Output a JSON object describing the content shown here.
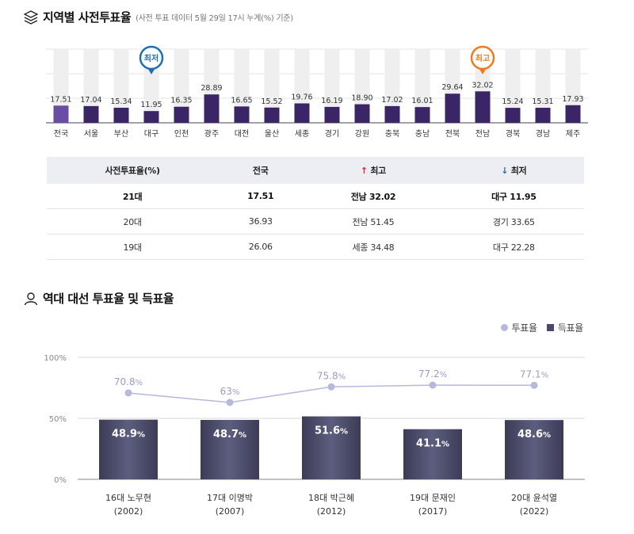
{
  "section1": {
    "title": "지역별 사전투표율",
    "subtitle": "(사전 투표 데이터 5월 29일 17시 누계(%) 기준)"
  },
  "colors": {
    "national_bar": "#6a4ba5",
    "bar": "#3a2666",
    "bar_bg": "#efefef",
    "min_marker": "#1f6fb2",
    "max_marker": "#ee7a1e",
    "vote_rate_line": "#b6b9dc",
    "win_rate_bar": "#4a4a68"
  },
  "chart_data": [
    {
      "type": "bar",
      "title": "지역별 사전투표율",
      "categories": [
        "전국",
        "서울",
        "부산",
        "대구",
        "인천",
        "광주",
        "대전",
        "울산",
        "세종",
        "경기",
        "강원",
        "충북",
        "충남",
        "전북",
        "전남",
        "경북",
        "경남",
        "제주"
      ],
      "values": [
        17.51,
        17.04,
        15.34,
        11.95,
        16.35,
        28.89,
        16.65,
        15.52,
        19.76,
        16.19,
        18.9,
        17.02,
        16.01,
        29.64,
        32.02,
        15.24,
        15.31,
        17.93
      ],
      "value_labels": [
        "17.51",
        "17.04",
        "15.34",
        "11.95",
        "16.35",
        "28.89",
        "16.65",
        "15.52",
        "19.76",
        "16.19",
        "18.90",
        "17.02",
        "16.01",
        "29.64",
        "32.02",
        "15.24",
        "15.31",
        "17.93"
      ],
      "ylim": [
        0,
        75
      ],
      "markers": {
        "min_label": "최저",
        "min_category": "대구",
        "max_label": "최고",
        "max_category": "전남"
      }
    },
    {
      "type": "bar",
      "title": "역대 대선 투표율 및 득표율",
      "categories": [
        "16대 노무현",
        "17대 이명박",
        "18대 박근혜",
        "19대 문재인",
        "20대 윤석열"
      ],
      "years": [
        "(2002)",
        "(2007)",
        "(2012)",
        "(2017)",
        "(2022)"
      ],
      "series": [
        {
          "name": "투표율",
          "type": "line",
          "values": [
            70.8,
            63,
            75.8,
            77.2,
            77.1
          ],
          "labels": [
            "70.8",
            "63",
            "75.8",
            "77.2",
            "77.1"
          ]
        },
        {
          "name": "득표율",
          "type": "bar",
          "values": [
            48.9,
            48.7,
            51.6,
            41.1,
            48.6
          ],
          "labels": [
            "48.9",
            "48.7",
            "51.6",
            "41.1",
            "48.6"
          ]
        }
      ],
      "unit": "%",
      "yticks": [
        "100%",
        "50%",
        "0%"
      ],
      "ylim": [
        0,
        100
      ]
    }
  ],
  "table": {
    "headers": [
      "사전투표율(%)",
      "전국",
      "최고",
      "최저"
    ],
    "up_arrow": "↑",
    "down_arrow": "↓",
    "rows": [
      [
        "21대",
        "17.51",
        "전남 32.02",
        "대구 11.95"
      ],
      [
        "20대",
        "36.93",
        "전남 51.45",
        "경기 33.65"
      ],
      [
        "19대",
        "26.06",
        "세종 34.48",
        "대구 22.28"
      ]
    ]
  },
  "section2": {
    "title": "역대 대선 투표율 및 득표율",
    "legend": {
      "line": "투표율",
      "bar": "득표율"
    }
  }
}
